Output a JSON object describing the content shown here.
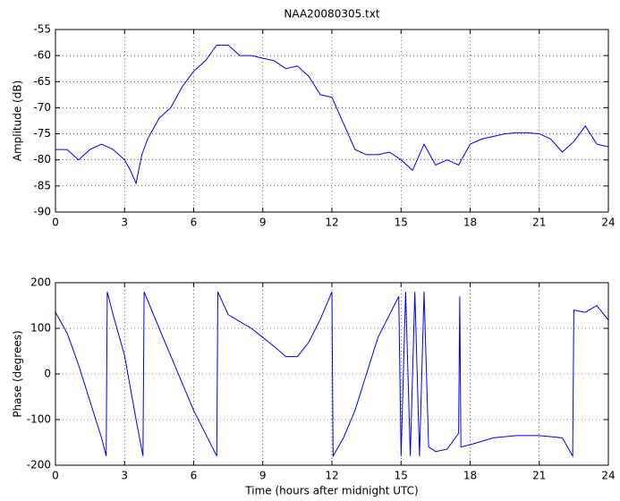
{
  "chart_data": [
    {
      "type": "line",
      "title": "NAA20080305.txt",
      "ylabel": "Amplitude (dB)",
      "x": [
        0,
        0.5,
        1,
        1.5,
        2,
        2.5,
        3,
        3.25,
        3.5,
        3.75,
        4,
        4.5,
        5,
        5.5,
        6,
        6.5,
        7,
        7.5,
        8,
        8.5,
        9,
        9.5,
        10,
        10.5,
        11,
        11.5,
        12,
        12.5,
        13,
        13.5,
        14,
        14.5,
        15,
        15.5,
        16,
        16.5,
        17,
        17.5,
        18,
        18.5,
        19,
        19.5,
        20,
        20.5,
        21,
        21.5,
        22,
        22.5,
        23,
        23.5,
        24
      ],
      "series": [
        {
          "name": "Amplitude",
          "color": "#0000ff",
          "values": [
            -78,
            -78,
            -80,
            -78,
            -77,
            -78,
            -80,
            -82,
            -84.5,
            -79,
            -76,
            -72,
            -70,
            -66,
            -63,
            -61,
            -58,
            -58,
            -60,
            -60,
            -60.5,
            -61,
            -62.5,
            -62,
            -64,
            -67.5,
            -68,
            -73,
            -78,
            -79,
            -79,
            -78.5,
            -80,
            -82,
            -77,
            -81,
            -80,
            -81,
            -77,
            -76,
            -75.5,
            -75,
            -74.8,
            -74.8,
            -75,
            -76,
            -78.5,
            -76.5,
            -73.5,
            -77,
            -77.5
          ]
        }
      ],
      "xlim": [
        0,
        24
      ],
      "xticks": [
        0,
        3,
        6,
        9,
        12,
        15,
        18,
        21,
        24
      ],
      "ylim": [
        -90,
        -55
      ],
      "yticks": [
        -90,
        -85,
        -80,
        -75,
        -70,
        -65,
        -60,
        -55
      ],
      "grid": true
    },
    {
      "type": "line",
      "xlabel": "Time (hours after midnight UTC)",
      "ylabel": "Phase (degrees)",
      "x": [
        0,
        0.5,
        1,
        1.5,
        2,
        2.2,
        2.25,
        2.5,
        3,
        3.5,
        3.8,
        3.85,
        4.5,
        5,
        5.5,
        6,
        6.5,
        7,
        7.05,
        7.5,
        8,
        8.5,
        9,
        9.5,
        10,
        10.5,
        11,
        11.5,
        12,
        12.05,
        12.5,
        13,
        13.5,
        14,
        14.5,
        14.9,
        15,
        15.2,
        15.4,
        15.6,
        15.8,
        16,
        16.2,
        16.5,
        17,
        17.5,
        17.55,
        17.6,
        18,
        19,
        20,
        21,
        22,
        22.45,
        22.5,
        23,
        23.5,
        24
      ],
      "series": [
        {
          "name": "Phase",
          "color": "#0000ff",
          "values": [
            135,
            90,
            20,
            -60,
            -140,
            -180,
            180,
            130,
            40,
            -100,
            -180,
            180,
            100,
            40,
            -20,
            -80,
            -130,
            -180,
            180,
            130,
            115,
            100,
            80,
            60,
            38,
            38,
            70,
            120,
            180,
            -180,
            -140,
            -80,
            0,
            80,
            130,
            170,
            -180,
            180,
            -180,
            180,
            -180,
            180,
            -160,
            -170,
            -165,
            -130,
            170,
            -160,
            -155,
            -140,
            -135,
            -135,
            -140,
            -180,
            140,
            135,
            150,
            118
          ]
        }
      ],
      "xlim": [
        0,
        24
      ],
      "xticks": [
        0,
        3,
        6,
        9,
        12,
        15,
        18,
        21,
        24
      ],
      "ylim": [
        -200,
        200
      ],
      "yticks": [
        -200,
        -100,
        0,
        100,
        200
      ],
      "grid": true
    }
  ]
}
